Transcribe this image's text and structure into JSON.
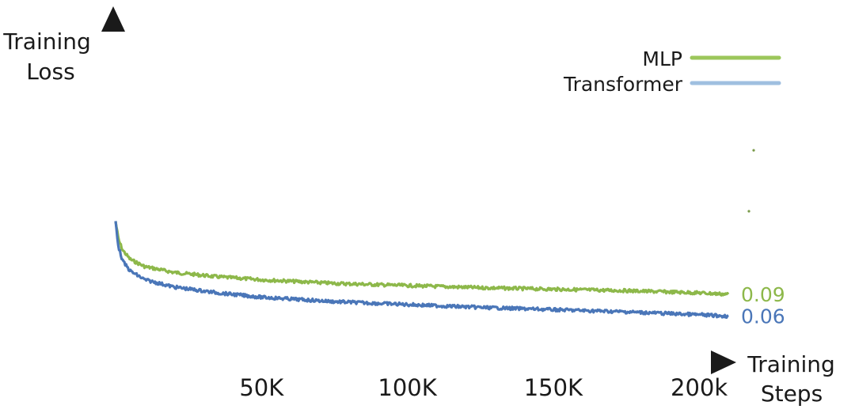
{
  "chart_data": {
    "type": "line",
    "title": "",
    "ylabel": [
      "Training",
      "Loss"
    ],
    "xlabel": [
      "Training",
      "Steps"
    ],
    "x_ticks": [
      {
        "value": 50000,
        "label": "50K"
      },
      {
        "value": 100000,
        "label": "100K"
      },
      {
        "value": 150000,
        "label": "150K"
      },
      {
        "value": 200000,
        "label": "200k"
      }
    ],
    "xlim": [
      0,
      210000
    ],
    "ylim": [
      0,
      0.45
    ],
    "grid": false,
    "legend_position": "top-right",
    "series": [
      {
        "name": "MLP",
        "color": "#8db84a",
        "end_label": "0.09",
        "x": [
          0,
          1000,
          2500,
          5000,
          10000,
          20000,
          35000,
          50000,
          75000,
          100000,
          125000,
          150000,
          175000,
          200000,
          210000
        ],
        "y": [
          0.19,
          0.165,
          0.15,
          0.138,
          0.128,
          0.12,
          0.114,
          0.11,
          0.105,
          0.102,
          0.099,
          0.097,
          0.095,
          0.092,
          0.09
        ]
      },
      {
        "name": "Transformer",
        "color": "#4a76b8",
        "end_label": "0.06",
        "x": [
          0,
          1000,
          2500,
          5000,
          10000,
          20000,
          35000,
          50000,
          75000,
          100000,
          125000,
          150000,
          175000,
          200000,
          210000
        ],
        "y": [
          0.19,
          0.155,
          0.135,
          0.122,
          0.11,
          0.1,
          0.092,
          0.086,
          0.08,
          0.076,
          0.072,
          0.069,
          0.066,
          0.062,
          0.06
        ]
      }
    ]
  }
}
